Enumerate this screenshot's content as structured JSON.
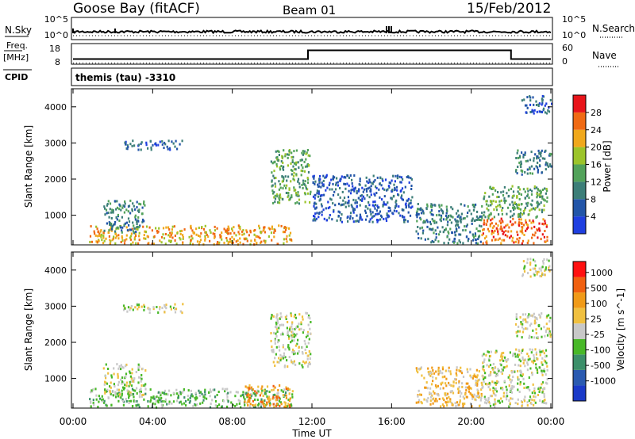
{
  "header": {
    "station": "Goose Bay (fitACF)",
    "beam": "Beam 01",
    "date": "15/Feb/2012"
  },
  "noise_panel": {
    "left_label": "N.Sky",
    "right_label": "N.Search",
    "left_ticks": [
      "10^5",
      "10^0"
    ],
    "right_ticks": [
      "10^5",
      "10^0"
    ]
  },
  "freq_panel": {
    "left_label_1": "Freq.",
    "left_label_2": "[MHz]",
    "right_label": "Nave",
    "left_ticks": [
      "18",
      "8"
    ],
    "right_ticks": [
      "60",
      "0"
    ]
  },
  "cpid": {
    "label": "CPID",
    "text": "themis (tau) -3310"
  },
  "x_ticks": [
    "00:00",
    "04:00",
    "08:00",
    "12:00",
    "16:00",
    "20:00",
    "00:00"
  ],
  "x_label": "Time UT",
  "colors": {
    "power": [
      "#1f3fe0",
      "#2255a8",
      "#3c7e78",
      "#52a25a",
      "#9cc42a",
      "#f0a81c",
      "#f06a14",
      "#e8141a"
    ],
    "velocity": [
      "#ff1010",
      "#f06010",
      "#f09a18",
      "#f0c040",
      "#c8c8c8",
      "#48b828",
      "#3c8f6a",
      "#2a5ab0",
      "#1a3ac8"
    ]
  },
  "chart_data": [
    {
      "type": "line",
      "name": "noise",
      "x_range_hours": [
        0,
        24
      ],
      "series": [
        {
          "name": "N.Sky",
          "style": "solid",
          "level": 0.3
        },
        {
          "name": "N.Search",
          "style": "dotted",
          "level": 0.2
        }
      ]
    },
    {
      "type": "line",
      "name": "frequency",
      "ylim": [
        8,
        18
      ],
      "series": [
        {
          "name": "Freq",
          "style": "solid",
          "x": [
            0,
            11.8,
            11.8,
            22.0,
            22.0,
            24
          ],
          "y": [
            10.5,
            10.5,
            15.5,
            15.5,
            10.5,
            10.5
          ]
        },
        {
          "name": "Nave",
          "style": "dotted",
          "x": [
            0,
            24
          ],
          "y": [
            10,
            10
          ]
        }
      ]
    },
    {
      "type": "heatmap",
      "name": "power",
      "title": "Power [dB]",
      "xlabel": "",
      "ylabel": "Slant Range [km]",
      "ylim": [
        180,
        4500
      ],
      "yticks": [
        1000,
        2000,
        3000,
        4000
      ],
      "colorbar_ticks": [
        "4",
        "8",
        "12",
        "16",
        "20",
        "24",
        "28"
      ],
      "regions": [
        {
          "t0": 0.8,
          "t1": 11.0,
          "r0": 180,
          "r1": 700,
          "level": 5
        },
        {
          "t0": 1.5,
          "t1": 3.6,
          "r0": 500,
          "r1": 1400,
          "level": 2
        },
        {
          "t0": 2.5,
          "t1": 5.5,
          "r0": 2800,
          "r1": 3050,
          "level": 1
        },
        {
          "t0": 9.9,
          "t1": 11.9,
          "r0": 1300,
          "r1": 2800,
          "level": 3
        },
        {
          "t0": 12.0,
          "t1": 17.0,
          "r0": 800,
          "r1": 2100,
          "level": 1
        },
        {
          "t0": 17.2,
          "t1": 20.5,
          "r0": 200,
          "r1": 1300,
          "level": 2
        },
        {
          "t0": 20.5,
          "t1": 23.8,
          "r0": 200,
          "r1": 900,
          "level": 6
        },
        {
          "t0": 20.5,
          "t1": 23.8,
          "r0": 900,
          "r1": 1800,
          "level": 3
        },
        {
          "t0": 22.2,
          "t1": 24.0,
          "r0": 2100,
          "r1": 2800,
          "level": 2
        },
        {
          "t0": 22.5,
          "t1": 24.0,
          "r0": 3800,
          "r1": 4300,
          "level": 1
        }
      ]
    },
    {
      "type": "heatmap",
      "name": "velocity",
      "title": "Velocity [m s^-1]",
      "xlabel": "Time UT",
      "ylabel": "Slant Range [km]",
      "ylim": [
        180,
        4500
      ],
      "yticks": [
        1000,
        2000,
        3000,
        4000
      ],
      "colorbar_ticks": [
        "1000",
        "500",
        "100",
        "25",
        "-25",
        "-100",
        "-500",
        "-1000"
      ],
      "regions": [
        {
          "t0": 0.8,
          "t1": 11.0,
          "r0": 180,
          "r1": 700,
          "level": 5
        },
        {
          "t0": 1.5,
          "t1": 3.6,
          "r0": 500,
          "r1": 1400,
          "level": 4
        },
        {
          "t0": 2.5,
          "t1": 5.5,
          "r0": 2800,
          "r1": 3050,
          "level": 4
        },
        {
          "t0": 9.9,
          "t1": 11.9,
          "r0": 1300,
          "r1": 2800,
          "level": 4
        },
        {
          "t0": 8.5,
          "t1": 11.0,
          "r0": 200,
          "r1": 800,
          "level": 2
        },
        {
          "t0": 17.2,
          "t1": 20.5,
          "r0": 200,
          "r1": 1300,
          "level": 3
        },
        {
          "t0": 20.5,
          "t1": 23.8,
          "r0": 200,
          "r1": 900,
          "level": 4
        },
        {
          "t0": 20.5,
          "t1": 23.8,
          "r0": 900,
          "r1": 1800,
          "level": 4
        },
        {
          "t0": 22.2,
          "t1": 24.0,
          "r0": 2100,
          "r1": 2800,
          "level": 4
        },
        {
          "t0": 22.5,
          "t1": 24.0,
          "r0": 3800,
          "r1": 4300,
          "level": 4
        }
      ]
    }
  ]
}
